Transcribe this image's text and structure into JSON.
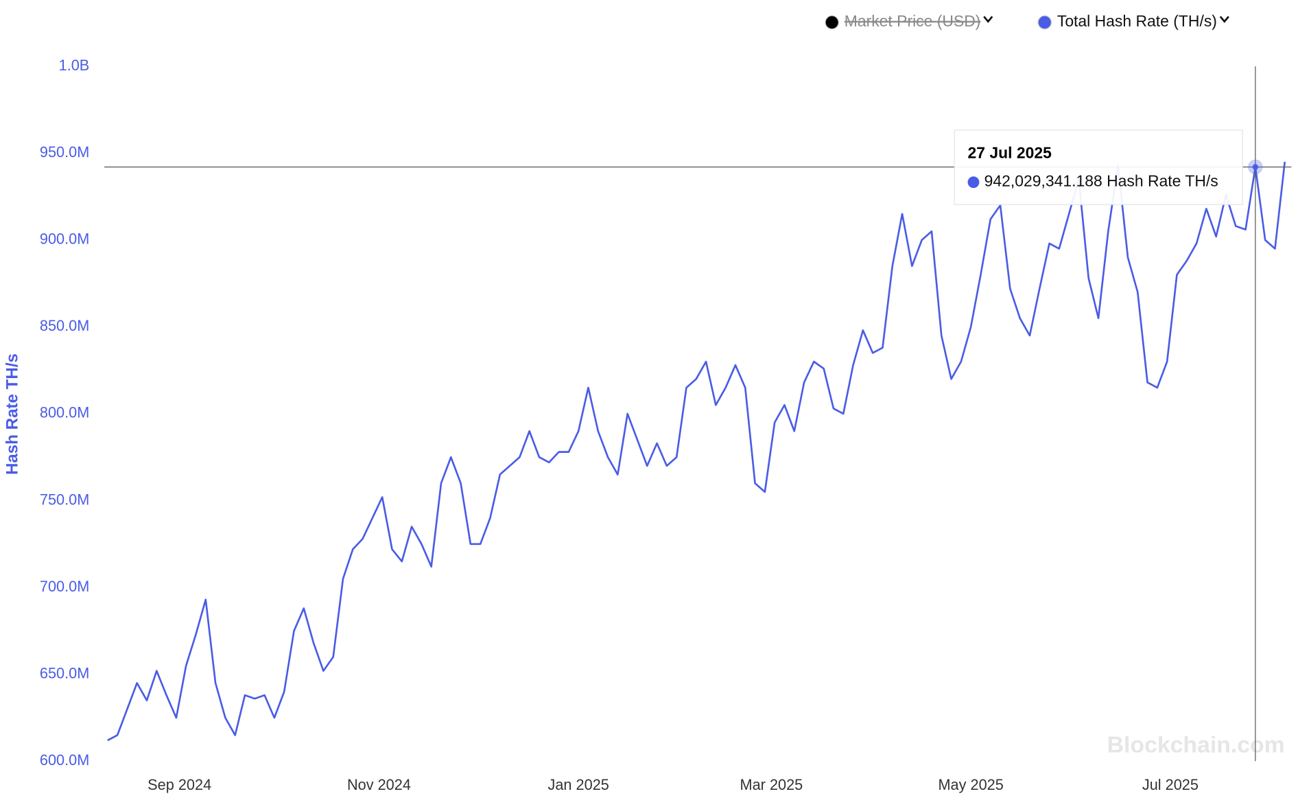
{
  "chart_data": {
    "type": "line",
    "y_label": "Hash Rate TH/s",
    "watermark": "Blockchain.com",
    "legend": [
      {
        "name": "Market Price (USD)",
        "color": "#000000",
        "hidden": true
      },
      {
        "name": "Total Hash Rate (TH/s)",
        "color": "#4a5ce6",
        "hidden": false
      }
    ],
    "xlim": [
      "2024-08-09",
      "2025-08-06"
    ],
    "xticks": [
      {
        "value": "2024-09-01",
        "label": "Sep 2024"
      },
      {
        "value": "2024-11-01",
        "label": "Nov 2024"
      },
      {
        "value": "2025-01-01",
        "label": "Jan 2025"
      },
      {
        "value": "2025-03-01",
        "label": "Mar 2025"
      },
      {
        "value": "2025-05-01",
        "label": "May 2025"
      },
      {
        "value": "2025-07-01",
        "label": "Jul 2025"
      }
    ],
    "ylim": [
      600000000,
      1000000000
    ],
    "yticks": [
      {
        "value": 600000000,
        "label": "600.0M"
      },
      {
        "value": 650000000,
        "label": "650.0M"
      },
      {
        "value": 700000000,
        "label": "700.0M"
      },
      {
        "value": 750000000,
        "label": "750.0M"
      },
      {
        "value": 800000000,
        "label": "800.0M"
      },
      {
        "value": 850000000,
        "label": "850.0M"
      },
      {
        "value": 900000000,
        "label": "900.0M"
      },
      {
        "value": 950000000,
        "label": "950.0M"
      },
      {
        "value": 1000000000,
        "label": "1.0B"
      }
    ],
    "x": [
      "2024-08-10",
      "2024-08-13",
      "2024-08-16",
      "2024-08-19",
      "2024-08-22",
      "2024-08-25",
      "2024-08-28",
      "2024-08-31",
      "2024-09-03",
      "2024-09-06",
      "2024-09-09",
      "2024-09-12",
      "2024-09-15",
      "2024-09-18",
      "2024-09-21",
      "2024-09-24",
      "2024-09-27",
      "2024-09-30",
      "2024-10-03",
      "2024-10-06",
      "2024-10-09",
      "2024-10-12",
      "2024-10-15",
      "2024-10-18",
      "2024-10-21",
      "2024-10-24",
      "2024-10-27",
      "2024-10-30",
      "2024-11-02",
      "2024-11-05",
      "2024-11-08",
      "2024-11-11",
      "2024-11-14",
      "2024-11-17",
      "2024-11-20",
      "2024-11-23",
      "2024-11-26",
      "2024-11-29",
      "2024-12-02",
      "2024-12-05",
      "2024-12-08",
      "2024-12-11",
      "2024-12-14",
      "2024-12-17",
      "2024-12-20",
      "2024-12-23",
      "2024-12-26",
      "2024-12-29",
      "2025-01-01",
      "2025-01-04",
      "2025-01-07",
      "2025-01-10",
      "2025-01-13",
      "2025-01-16",
      "2025-01-19",
      "2025-01-22",
      "2025-01-25",
      "2025-01-28",
      "2025-01-31",
      "2025-02-03",
      "2025-02-06",
      "2025-02-09",
      "2025-02-12",
      "2025-02-15",
      "2025-02-18",
      "2025-02-21",
      "2025-02-24",
      "2025-02-27",
      "2025-03-02",
      "2025-03-05",
      "2025-03-08",
      "2025-03-11",
      "2025-03-14",
      "2025-03-17",
      "2025-03-20",
      "2025-03-23",
      "2025-03-26",
      "2025-03-29",
      "2025-04-01",
      "2025-04-04",
      "2025-04-07",
      "2025-04-10",
      "2025-04-13",
      "2025-04-16",
      "2025-04-19",
      "2025-04-22",
      "2025-04-25",
      "2025-04-28",
      "2025-05-01",
      "2025-05-04",
      "2025-05-07",
      "2025-05-10",
      "2025-05-13",
      "2025-05-16",
      "2025-05-19",
      "2025-05-22",
      "2025-05-25",
      "2025-05-28",
      "2025-05-31",
      "2025-06-03",
      "2025-06-06",
      "2025-06-09",
      "2025-06-12",
      "2025-06-15",
      "2025-06-18",
      "2025-06-21",
      "2025-06-24",
      "2025-06-27",
      "2025-06-30",
      "2025-07-03",
      "2025-07-06",
      "2025-07-09",
      "2025-07-12",
      "2025-07-15",
      "2025-07-18",
      "2025-07-21",
      "2025-07-24",
      "2025-07-27",
      "2025-07-30",
      "2025-08-02",
      "2025-08-05"
    ],
    "series": [
      {
        "name": "Total Hash Rate (TH/s)",
        "color": "#4a5ce6",
        "values": [
          612000000,
          615000000,
          630000000,
          645000000,
          635000000,
          652000000,
          638000000,
          625000000,
          655000000,
          673000000,
          693000000,
          645000000,
          625000000,
          615000000,
          638000000,
          636000000,
          638000000,
          625000000,
          640000000,
          675000000,
          688000000,
          668000000,
          652000000,
          660000000,
          705000000,
          722000000,
          728000000,
          740000000,
          752000000,
          722000000,
          715000000,
          735000000,
          725000000,
          712000000,
          760000000,
          775000000,
          760000000,
          725000000,
          725000000,
          740000000,
          765000000,
          770000000,
          775000000,
          790000000,
          775000000,
          772000000,
          778000000,
          778000000,
          790000000,
          815000000,
          790000000,
          775000000,
          765000000,
          800000000,
          785000000,
          770000000,
          783000000,
          770000000,
          775000000,
          815000000,
          820000000,
          830000000,
          805000000,
          815000000,
          828000000,
          815000000,
          760000000,
          755000000,
          795000000,
          805000000,
          790000000,
          818000000,
          830000000,
          826000000,
          803000000,
          800000000,
          828000000,
          848000000,
          835000000,
          838000000,
          885000000,
          915000000,
          885000000,
          900000000,
          905000000,
          845000000,
          820000000,
          830000000,
          850000000,
          880000000,
          912000000,
          920000000,
          872000000,
          855000000,
          845000000,
          872000000,
          898000000,
          895000000,
          915000000,
          935000000,
          878000000,
          855000000,
          905000000,
          943000000,
          890000000,
          870000000,
          818000000,
          815000000,
          830000000,
          880000000,
          888000000,
          898000000,
          918000000,
          902000000,
          926000000,
          908000000,
          906000000,
          942029341.188,
          900000000,
          895000000,
          945000000
        ]
      }
    ],
    "tooltip": {
      "x": "2025-07-27",
      "label": "27 Jul 2025",
      "value_label": "942,029,341.188",
      "series_label": "Hash Rate TH/s"
    }
  }
}
